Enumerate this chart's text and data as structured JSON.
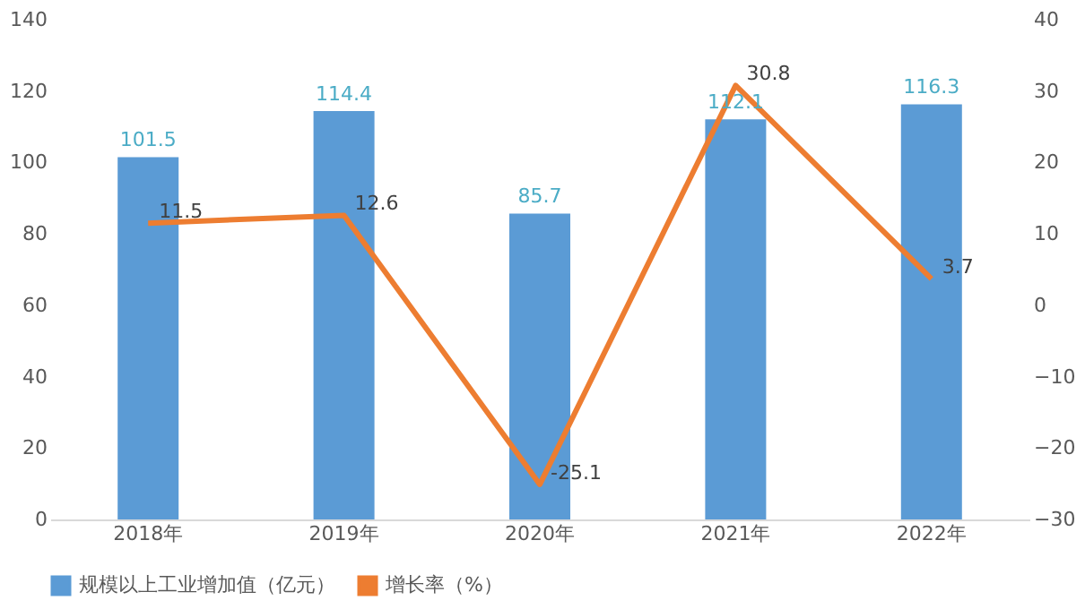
{
  "chart_data": {
    "type": "bar",
    "categories": [
      "2018年",
      "2019年",
      "2020年",
      "2021年",
      "2022年"
    ],
    "series": [
      {
        "name": "规模以上工业增加值（亿元）",
        "color": "#5b9bd5",
        "values": [
          101.5,
          114.4,
          85.7,
          112.1,
          116.3
        ]
      },
      {
        "name": "增长率（%）",
        "type": "line",
        "axis": "y2",
        "color": "#ed7d31",
        "values": [
          11.5,
          12.6,
          -25.1,
          30.8,
          3.7
        ]
      }
    ],
    "ylim": [
      0,
      140
    ],
    "yticks": [
      0,
      20,
      40,
      60,
      80,
      100,
      120,
      140
    ],
    "y2lim": [
      -30,
      40
    ],
    "y2ticks": [
      -30,
      -20,
      -10,
      0,
      10,
      20,
      30,
      40
    ],
    "data_labels": true,
    "legend": "bottom",
    "grid": false,
    "marker": "none",
    "line_style": "solid"
  }
}
